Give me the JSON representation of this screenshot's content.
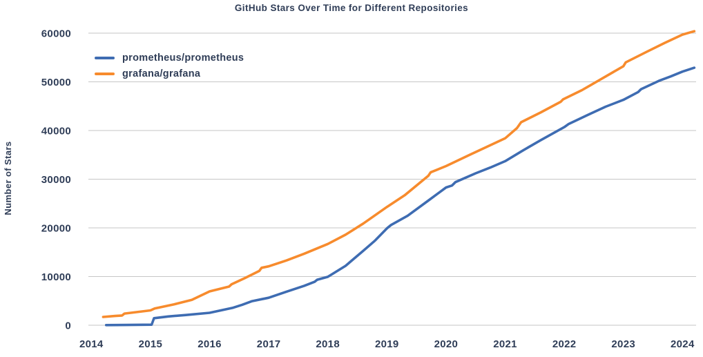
{
  "colors": {
    "background": "#ffffff",
    "text": "#2f3d57",
    "grid": "#c6c6c6",
    "prometheus_blue": "#3e6cb2",
    "grafana_orange": "#f78b2d"
  },
  "chart_data": {
    "type": "line",
    "title": "GitHub Stars Over Time for Different Repositories",
    "xlabel": "",
    "ylabel": "Number of Stars",
    "xlim": [
      2013.95,
      2024.23
    ],
    "ylim": [
      0,
      60000
    ],
    "x_ticks": [
      2014,
      2015,
      2016,
      2017,
      2018,
      2019,
      2020,
      2021,
      2022,
      2023,
      2024
    ],
    "y_ticks": [
      0,
      10000,
      20000,
      30000,
      40000,
      50000,
      60000
    ],
    "grid": "horizontal-only",
    "legend_position": "upper-left-inside",
    "series": [
      {
        "name": "prometheus/prometheus",
        "color": "#3e6cb2",
        "points": [
          [
            2014.25,
            30
          ],
          [
            2014.6,
            60
          ],
          [
            2015.02,
            120
          ],
          [
            2015.06,
            1450
          ],
          [
            2015.3,
            1800
          ],
          [
            2015.6,
            2100
          ],
          [
            2016.0,
            2550
          ],
          [
            2016.4,
            3600
          ],
          [
            2016.55,
            4200
          ],
          [
            2016.72,
            4950
          ],
          [
            2017.0,
            5650
          ],
          [
            2017.3,
            6900
          ],
          [
            2017.6,
            8100
          ],
          [
            2017.78,
            8950
          ],
          [
            2017.82,
            9350
          ],
          [
            2018.0,
            9950
          ],
          [
            2018.3,
            12200
          ],
          [
            2018.6,
            15300
          ],
          [
            2018.8,
            17400
          ],
          [
            2019.0,
            19900
          ],
          [
            2019.07,
            20600
          ],
          [
            2019.35,
            22500
          ],
          [
            2019.7,
            25600
          ],
          [
            2020.0,
            28300
          ],
          [
            2020.1,
            28700
          ],
          [
            2020.16,
            29400
          ],
          [
            2020.5,
            31200
          ],
          [
            2020.75,
            32400
          ],
          [
            2021.0,
            33700
          ],
          [
            2021.3,
            35900
          ],
          [
            2021.6,
            38000
          ],
          [
            2022.0,
            40700
          ],
          [
            2022.07,
            41300
          ],
          [
            2022.4,
            43200
          ],
          [
            2022.7,
            44900
          ],
          [
            2023.0,
            46300
          ],
          [
            2023.25,
            47900
          ],
          [
            2023.3,
            48500
          ],
          [
            2023.6,
            50200
          ],
          [
            2023.8,
            51100
          ],
          [
            2024.0,
            52100
          ],
          [
            2024.2,
            52900
          ]
        ]
      },
      {
        "name": "grafana/grafana",
        "color": "#f78b2d",
        "points": [
          [
            2014.2,
            1700
          ],
          [
            2014.4,
            1900
          ],
          [
            2014.52,
            2000
          ],
          [
            2014.56,
            2400
          ],
          [
            2015.0,
            3050
          ],
          [
            2015.07,
            3450
          ],
          [
            2015.4,
            4300
          ],
          [
            2015.7,
            5200
          ],
          [
            2016.0,
            6950
          ],
          [
            2016.33,
            7950
          ],
          [
            2016.37,
            8400
          ],
          [
            2016.6,
            9700
          ],
          [
            2016.84,
            11150
          ],
          [
            2016.88,
            11800
          ],
          [
            2017.0,
            12100
          ],
          [
            2017.3,
            13300
          ],
          [
            2017.6,
            14700
          ],
          [
            2018.0,
            16700
          ],
          [
            2018.3,
            18600
          ],
          [
            2018.6,
            20900
          ],
          [
            2019.0,
            24300
          ],
          [
            2019.3,
            26700
          ],
          [
            2019.7,
            30700
          ],
          [
            2019.74,
            31400
          ],
          [
            2020.0,
            32700
          ],
          [
            2020.4,
            35000
          ],
          [
            2020.7,
            36700
          ],
          [
            2021.0,
            38400
          ],
          [
            2021.2,
            40500
          ],
          [
            2021.27,
            41700
          ],
          [
            2021.6,
            43700
          ],
          [
            2021.94,
            45900
          ],
          [
            2021.98,
            46400
          ],
          [
            2022.3,
            48300
          ],
          [
            2022.6,
            50400
          ],
          [
            2023.0,
            53200
          ],
          [
            2023.04,
            54000
          ],
          [
            2023.4,
            56200
          ],
          [
            2023.7,
            58000
          ],
          [
            2024.0,
            59700
          ],
          [
            2024.2,
            60400
          ]
        ]
      }
    ]
  }
}
